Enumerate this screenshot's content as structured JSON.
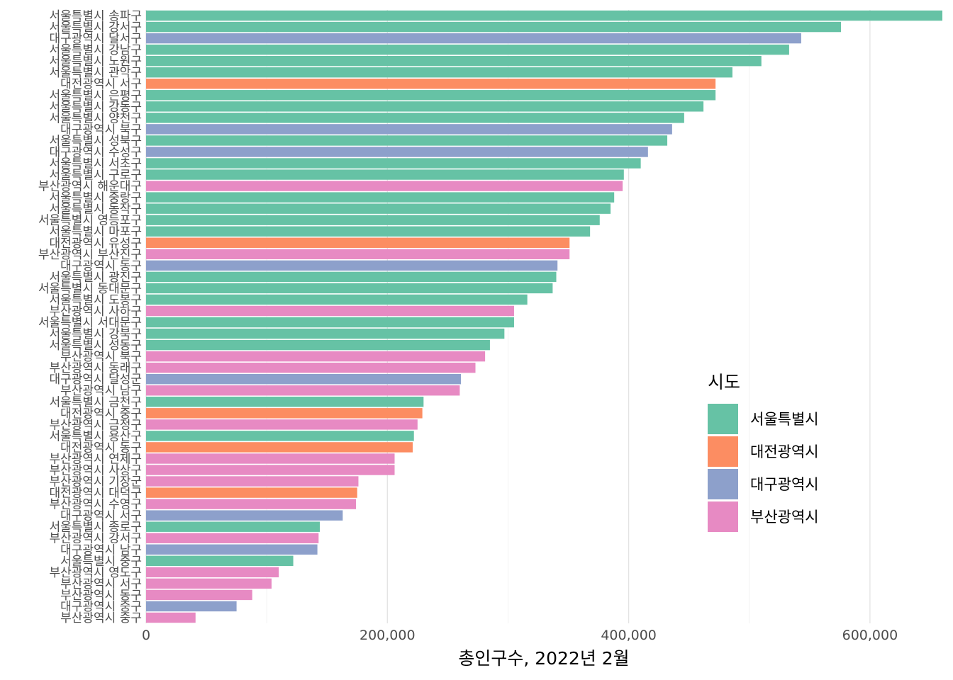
{
  "chart_data": {
    "type": "bar",
    "orientation": "horizontal",
    "xlabel": "총인구수, 2022년 2월",
    "ylabel": "",
    "xlim": [
      0,
      660000
    ],
    "x_ticks": [
      0,
      200000,
      400000,
      600000
    ],
    "x_tick_labels": [
      "0",
      "200,000",
      "400,000",
      "600,000"
    ],
    "grid": true,
    "legend": {
      "title": "시도",
      "position": "right",
      "entries": [
        {
          "name": "서울특별시",
          "color": "#66C2A5"
        },
        {
          "name": "대전광역시",
          "color": "#FC8D62"
        },
        {
          "name": "대구광역시",
          "color": "#8DA0CB"
        },
        {
          "name": "부산광역시",
          "color": "#E78AC3"
        }
      ]
    },
    "bars": [
      {
        "label": "서울특별시 송파구",
        "group": "서울특별시",
        "value": 660000
      },
      {
        "label": "서울특별시 강서구",
        "group": "서울특별시",
        "value": 576000
      },
      {
        "label": "대구광역시 달서구",
        "group": "대구광역시",
        "value": 543000
      },
      {
        "label": "서울특별시 강남구",
        "group": "서울특별시",
        "value": 533000
      },
      {
        "label": "서울특별시 노원구",
        "group": "서울특별시",
        "value": 510000
      },
      {
        "label": "서울특별시 관악구",
        "group": "서울특별시",
        "value": 486000
      },
      {
        "label": "대전광역시 서구",
        "group": "대전광역시",
        "value": 472000
      },
      {
        "label": "서울특별시 은평구",
        "group": "서울특별시",
        "value": 472000
      },
      {
        "label": "서울특별시 강동구",
        "group": "서울특별시",
        "value": 462000
      },
      {
        "label": "서울특별시 양천구",
        "group": "서울특별시",
        "value": 446000
      },
      {
        "label": "대구광역시 북구",
        "group": "대구광역시",
        "value": 436000
      },
      {
        "label": "서울특별시 성북구",
        "group": "서울특별시",
        "value": 432000
      },
      {
        "label": "대구광역시 수성구",
        "group": "대구광역시",
        "value": 416000
      },
      {
        "label": "서울특별시 서초구",
        "group": "서울특별시",
        "value": 410000
      },
      {
        "label": "서울특별시 구로구",
        "group": "서울특별시",
        "value": 396000
      },
      {
        "label": "부산광역시 해운대구",
        "group": "부산광역시",
        "value": 395000
      },
      {
        "label": "서울특별시 중랑구",
        "group": "서울특별시",
        "value": 388000
      },
      {
        "label": "서울특별시 동작구",
        "group": "서울특별시",
        "value": 385000
      },
      {
        "label": "서울특별시 영등포구",
        "group": "서울특별시",
        "value": 376000
      },
      {
        "label": "서울특별시 마포구",
        "group": "서울특별시",
        "value": 368000
      },
      {
        "label": "대전광역시 유성구",
        "group": "대전광역시",
        "value": 351000
      },
      {
        "label": "부산광역시 부산진구",
        "group": "부산광역시",
        "value": 351000
      },
      {
        "label": "대구광역시 동구",
        "group": "대구광역시",
        "value": 341000
      },
      {
        "label": "서울특별시 광진구",
        "group": "서울특별시",
        "value": 340000
      },
      {
        "label": "서울특별시 동대문구",
        "group": "서울특별시",
        "value": 337000
      },
      {
        "label": "서울특별시 도봉구",
        "group": "서울특별시",
        "value": 316000
      },
      {
        "label": "부산광역시 사하구",
        "group": "부산광역시",
        "value": 305000
      },
      {
        "label": "서울특별시 서대문구",
        "group": "서울특별시",
        "value": 305000
      },
      {
        "label": "서울특별시 강북구",
        "group": "서울특별시",
        "value": 297000
      },
      {
        "label": "서울특별시 성동구",
        "group": "서울특별시",
        "value": 285000
      },
      {
        "label": "부산광역시 북구",
        "group": "부산광역시",
        "value": 281000
      },
      {
        "label": "부산광역시 동래구",
        "group": "부산광역시",
        "value": 273000
      },
      {
        "label": "대구광역시 달성군",
        "group": "대구광역시",
        "value": 261000
      },
      {
        "label": "부산광역시 남구",
        "group": "부산광역시",
        "value": 260000
      },
      {
        "label": "서울특별시 금천구",
        "group": "서울특별시",
        "value": 230000
      },
      {
        "label": "대전광역시 중구",
        "group": "대전광역시",
        "value": 229000
      },
      {
        "label": "부산광역시 금정구",
        "group": "부산광역시",
        "value": 225000
      },
      {
        "label": "서울특별시 용산구",
        "group": "서울특별시",
        "value": 222000
      },
      {
        "label": "대전광역시 동구",
        "group": "대전광역시",
        "value": 221000
      },
      {
        "label": "부산광역시 연제구",
        "group": "부산광역시",
        "value": 206000
      },
      {
        "label": "부산광역시 사상구",
        "group": "부산광역시",
        "value": 206000
      },
      {
        "label": "부산광역시 기장군",
        "group": "부산광역시",
        "value": 176000
      },
      {
        "label": "대전광역시 대덕구",
        "group": "대전광역시",
        "value": 175000
      },
      {
        "label": "부산광역시 수영구",
        "group": "부산광역시",
        "value": 174000
      },
      {
        "label": "대구광역시 서구",
        "group": "대구광역시",
        "value": 163000
      },
      {
        "label": "서울특별시 종로구",
        "group": "서울특별시",
        "value": 144000
      },
      {
        "label": "부산광역시 강서구",
        "group": "부산광역시",
        "value": 143000
      },
      {
        "label": "대구광역시 남구",
        "group": "대구광역시",
        "value": 142000
      },
      {
        "label": "서울특별시 중구",
        "group": "서울특별시",
        "value": 122000
      },
      {
        "label": "부산광역시 영도구",
        "group": "부산광역시",
        "value": 110000
      },
      {
        "label": "부산광역시 서구",
        "group": "부산광역시",
        "value": 104000
      },
      {
        "label": "부산광역시 동구",
        "group": "부산광역시",
        "value": 88000
      },
      {
        "label": "대구광역시 중구",
        "group": "대구광역시",
        "value": 75000
      },
      {
        "label": "부산광역시 중구",
        "group": "부산광역시",
        "value": 41000
      }
    ]
  }
}
